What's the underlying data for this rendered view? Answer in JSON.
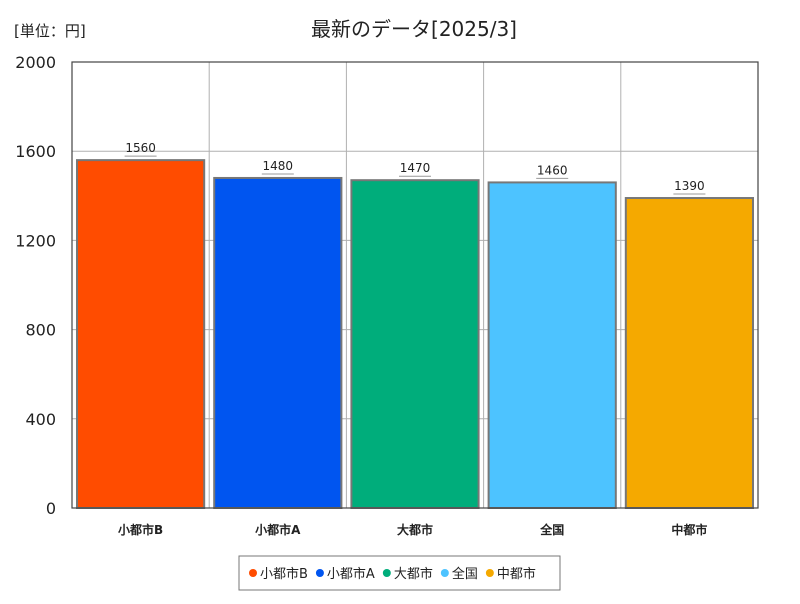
{
  "unit_label": "[単位：円]",
  "chart_data": {
    "type": "bar",
    "title": "最新のデータ[2025/3]",
    "categories": [
      "小都市B",
      "小都市A",
      "大都市",
      "全国",
      "中都市"
    ],
    "values": [
      1560,
      1480,
      1470,
      1460,
      1390
    ],
    "colors": [
      "#FF4C00",
      "#0055F0",
      "#00AD7B",
      "#4DC3FF",
      "#F5A900"
    ],
    "ylim": [
      0,
      2000
    ],
    "yticks": [
      0,
      400,
      800,
      1200,
      1600,
      2000
    ],
    "xlabel": "",
    "ylabel": "",
    "grid": true,
    "legend_position": "bottom",
    "data_labels": true
  }
}
